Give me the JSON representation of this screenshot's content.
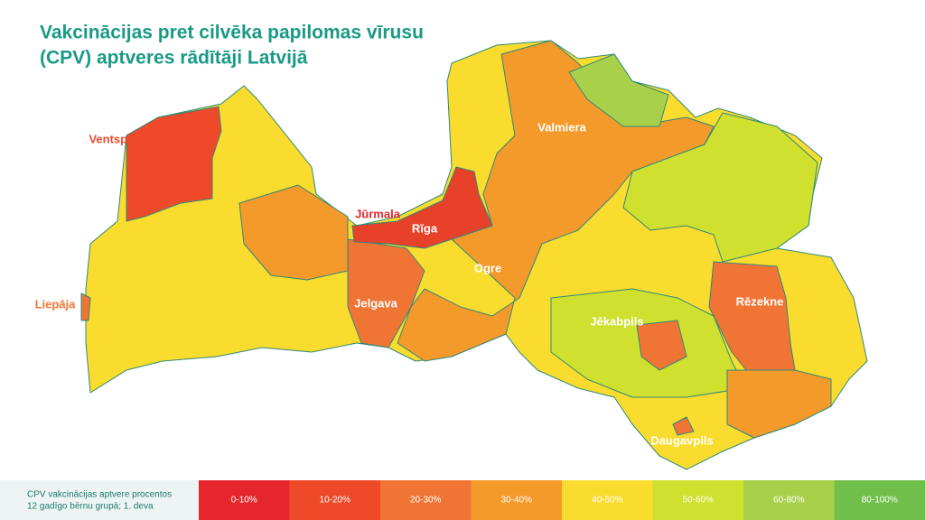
{
  "header": {
    "title_lines": [
      "Vakcinācijas pret cilvēka papilomas vīrusu",
      "(CPV) aptveres rādītāji Latvijā"
    ]
  },
  "map": {
    "cities": [
      "Ventspils",
      "Liepāja",
      "Jūrmala",
      "Rīga",
      "Valmiera",
      "Ogre",
      "Jelgava",
      "Jēkabpils",
      "Rēzekne",
      "Daugavpils"
    ]
  },
  "legend": {
    "caption_lines": [
      "CPV vakcinācijas aptvere procentos",
      "12 gadīgo bērnu grupā; 1. deva"
    ],
    "bins": [
      {
        "label": "0-10%",
        "color": "#e5272d"
      },
      {
        "label": "10-20%",
        "color": "#ee4a2a"
      },
      {
        "label": "20-30%",
        "color": "#f07535"
      },
      {
        "label": "30-40%",
        "color": "#f39a2a"
      },
      {
        "label": "40-50%",
        "color": "#f9dc2e"
      },
      {
        "label": "50-60%",
        "color": "#cfe02f"
      },
      {
        "label": "60-80%",
        "color": "#a8d04a"
      },
      {
        "label": "80-100%",
        "color": "#6fbf4a"
      }
    ]
  }
}
